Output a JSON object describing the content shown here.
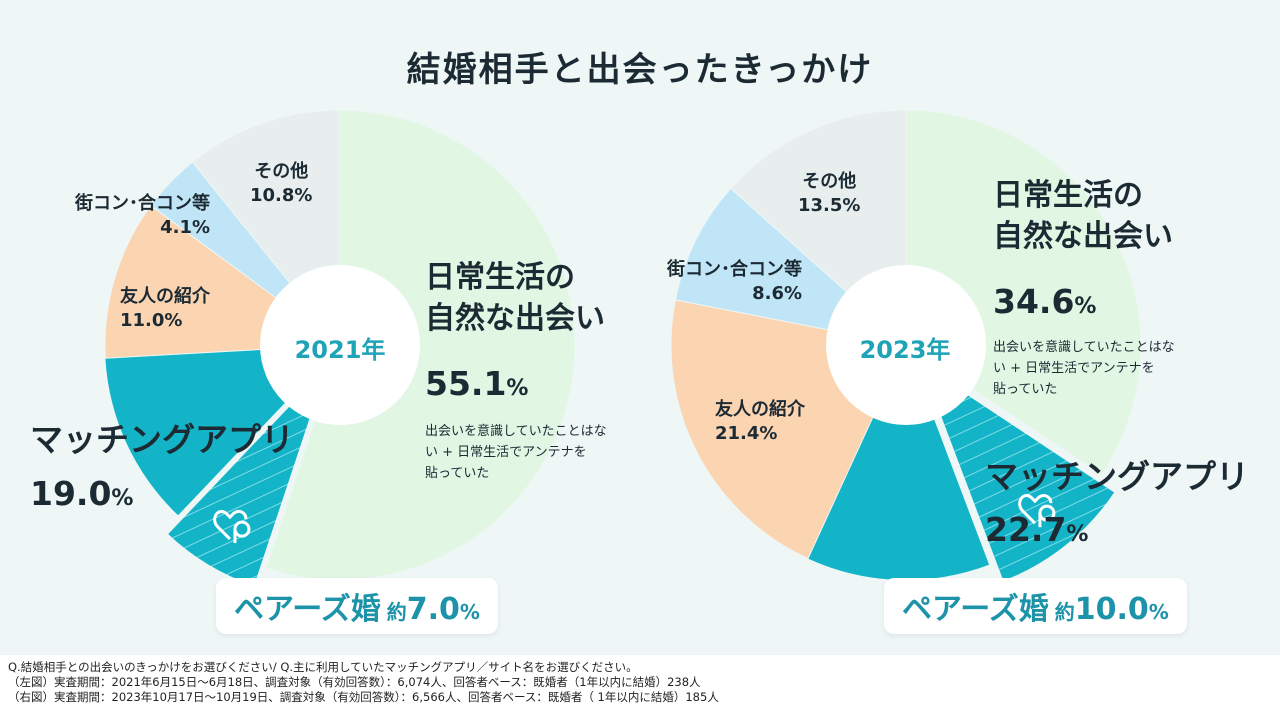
{
  "title": "結婚相手と出会ったきっかけ",
  "colors": {
    "daily": "#e2f6e4",
    "app": "#14b4c8",
    "friend": "#fbd4b2",
    "event": "#bfe5f7",
    "other": "#e8eeee",
    "text": "#1c2a33",
    "accent": "#1fa3b6"
  },
  "chart_data": [
    {
      "type": "pie",
      "center_label": "2021年",
      "slices": [
        {
          "label": "日常生活の自然な出会い",
          "value": 55.1,
          "value_label": "55.1%",
          "note": "出会いを意識していたことはない + 日常生活でアンテナを貼っていた"
        },
        {
          "label": "マッチングアプリ",
          "value": 19.0,
          "value_label": "19.0%",
          "sub": {
            "label": "ペアーズ婚",
            "prefix": "約",
            "value": 7.0,
            "value_label": "7.0",
            "unit": "%"
          }
        },
        {
          "label": "友人の紹介",
          "value": 11.0,
          "value_label": "11.0%"
        },
        {
          "label": "街コン･合コン等",
          "value": 4.1,
          "value_label": "4.1%"
        },
        {
          "label": "その他",
          "value": 10.8,
          "value_label": "10.8%"
        }
      ]
    },
    {
      "type": "pie",
      "center_label": "2023年",
      "slices": [
        {
          "label": "日常生活の自然な出会い",
          "value": 34.6,
          "value_label": "34.6%",
          "note": "出会いを意識していたことはない + 日常生活でアンテナを貼っていた"
        },
        {
          "label": "マッチングアプリ",
          "value": 22.7,
          "value_label": "22.7%",
          "sub": {
            "label": "ペアーズ婚",
            "prefix": "約",
            "value": 10.0,
            "value_label": "10.0",
            "unit": "%"
          }
        },
        {
          "label": "友人の紹介",
          "value": 21.4,
          "value_label": "21.4%"
        },
        {
          "label": "街コン･合コン等",
          "value": 8.6,
          "value_label": "8.6%"
        },
        {
          "label": "その他",
          "value": 13.5,
          "value_label": "13.5%"
        }
      ]
    }
  ],
  "labels": {
    "daily1": "日常生活の",
    "daily2": "自然な出会い",
    "note1": "出会いを意識していたことはな",
    "note2": "い + 日常生活でアンテナを",
    "note3": "貼っていた",
    "pct_unit": "%",
    "app_pct_2021": "19.0",
    "app_pct_2023": "22.7",
    "daily_pct_2021": "55.1",
    "daily_pct_2023": "34.6"
  },
  "footnotes": [
    "Q.結婚相手との出会いのきっかけをお選びください/  Q.主に利用していたマッチングアプリ／サイト名をお選びください。",
    "（左図）実査期間：2021年6月15日～6月18日、調査対象（有効回答数）：6,074人、回答者ベース：既婚者（1年以内に結婚）238人",
    "（右図）実査期間：2023年10月17日～10月19日、調査対象（有効回答数）：6,566人、回答者ベース：既婚者（ 1年以内に結婚）185人"
  ]
}
